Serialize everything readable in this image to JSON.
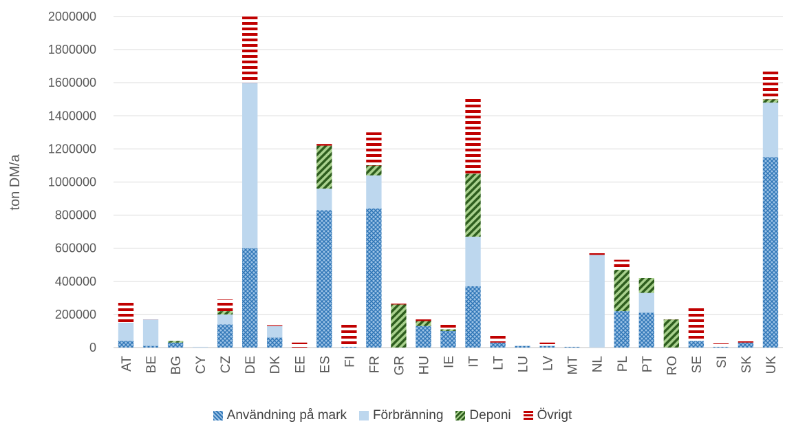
{
  "chart_data": {
    "type": "bar",
    "stacked": true,
    "title": "",
    "xlabel": "",
    "ylabel": "ton DM/a",
    "ylim": [
      0,
      2000000
    ],
    "yticks": [
      0,
      200000,
      400000,
      600000,
      800000,
      1000000,
      1200000,
      1400000,
      1600000,
      1800000,
      2000000
    ],
    "grid": true,
    "legend_position": "bottom",
    "categories": [
      "AT",
      "BE",
      "BG",
      "CY",
      "CZ",
      "DE",
      "DK",
      "EE",
      "ES",
      "FI",
      "FR",
      "GR",
      "HU",
      "IE",
      "IT",
      "LT",
      "LU",
      "LV",
      "MT",
      "NL",
      "PL",
      "PT",
      "RO",
      "SE",
      "SI",
      "SK",
      "UK"
    ],
    "series": [
      {
        "name": "Användning på mark",
        "color": "#2e75b6",
        "pattern": "crosshatch",
        "values": [
          40000,
          10000,
          30000,
          0,
          140000,
          600000,
          60000,
          0,
          830000,
          5000,
          840000,
          0,
          130000,
          100000,
          370000,
          30000,
          10000,
          10000,
          5000,
          0,
          220000,
          210000,
          0,
          40000,
          5000,
          30000,
          1150000
        ]
      },
      {
        "name": "Förbränning",
        "color": "#bdd7ee",
        "pattern": "solid",
        "values": [
          110000,
          160000,
          0,
          5000,
          60000,
          1000000,
          70000,
          0,
          130000,
          0,
          200000,
          0,
          0,
          0,
          300000,
          0,
          0,
          0,
          0,
          560000,
          0,
          120000,
          0,
          0,
          0,
          0,
          330000
        ]
      },
      {
        "name": "Deponi",
        "color": "#2e5e1e",
        "pattern": "diagonal",
        "values": [
          0,
          0,
          10000,
          0,
          20000,
          0,
          0,
          0,
          260000,
          0,
          60000,
          260000,
          30000,
          10000,
          380000,
          0,
          0,
          0,
          0,
          0,
          250000,
          90000,
          170000,
          0,
          0,
          0,
          20000
        ]
      },
      {
        "name": "Övrigt",
        "color": "#c00000",
        "pattern": "horizontal",
        "values": [
          130000,
          5000,
          10000,
          10000,
          70000,
          410000,
          5000,
          30000,
          10000,
          140000,
          200000,
          5000,
          10000,
          30000,
          460000,
          50000,
          5000,
          20000,
          5000,
          10000,
          60000,
          0,
          5000,
          200000,
          20000,
          15000,
          170000
        ]
      }
    ]
  }
}
